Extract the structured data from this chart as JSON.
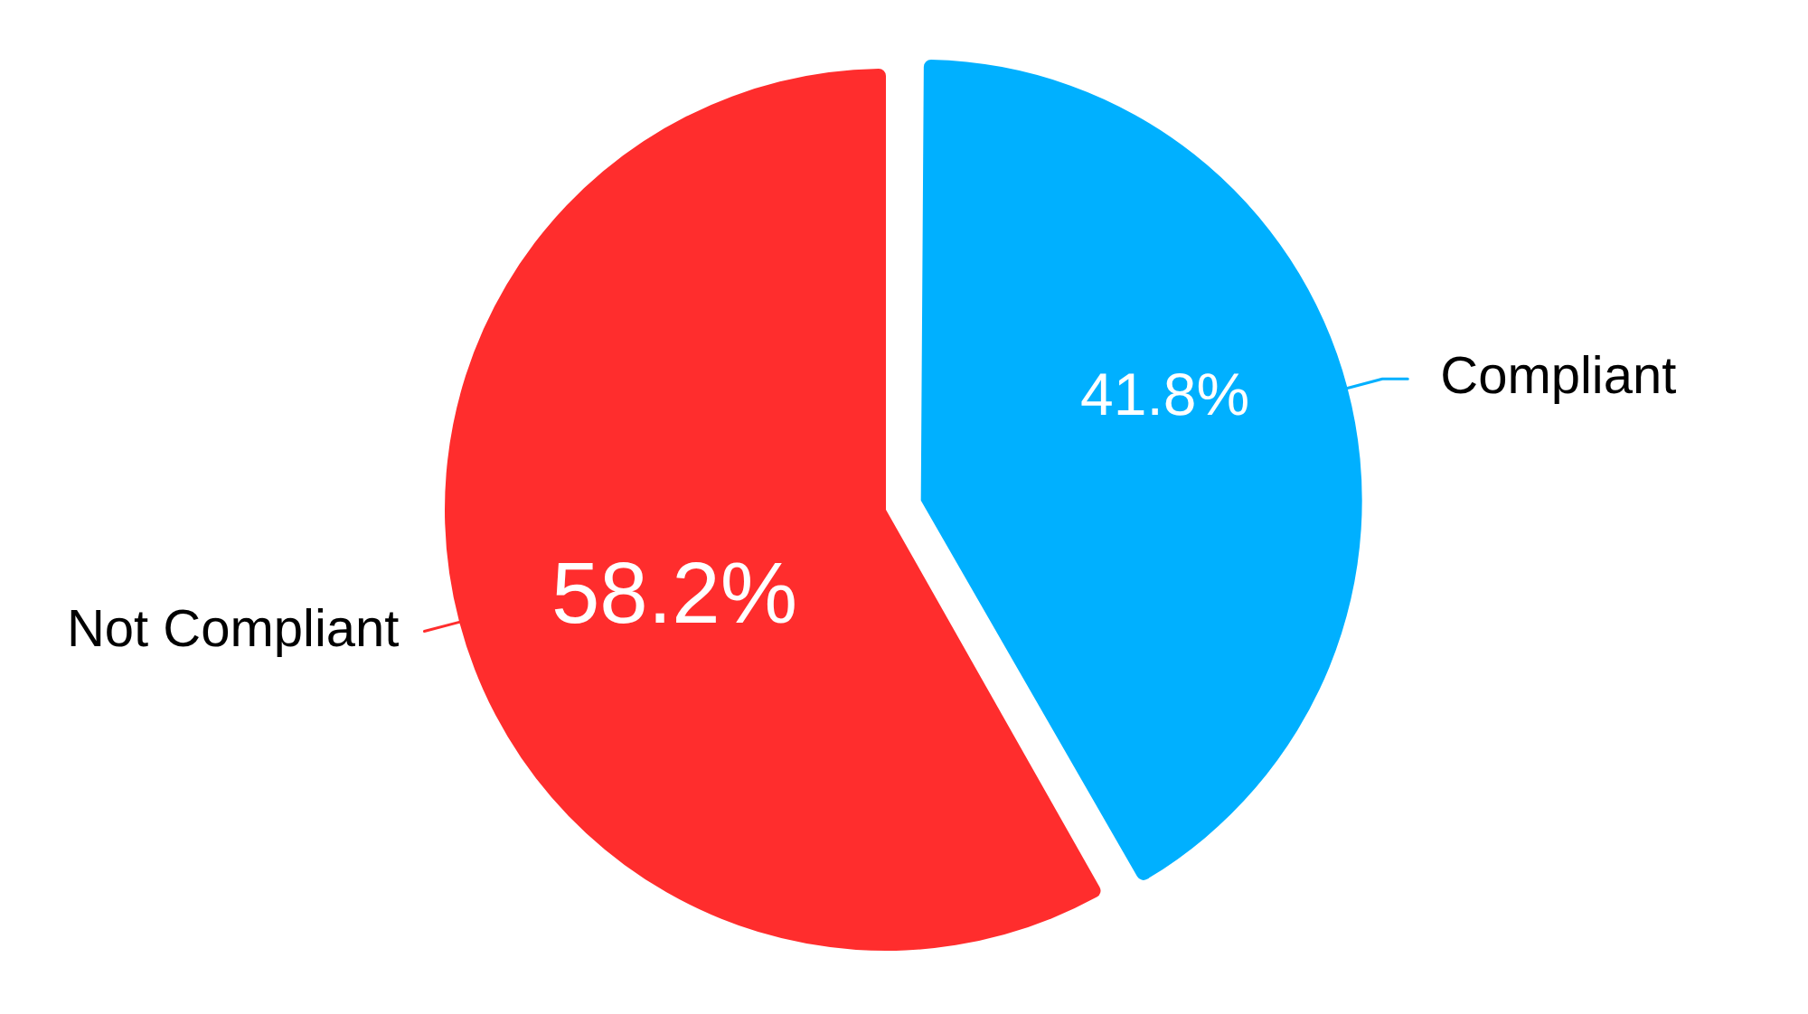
{
  "chart_data": {
    "type": "pie",
    "categories": [
      "Compliant",
      "Not Compliant"
    ],
    "values": [
      41.8,
      58.2
    ],
    "colors": [
      "#00b0ff",
      "#ff2d2d"
    ],
    "value_labels": [
      "41.8%",
      "58.2%"
    ]
  }
}
